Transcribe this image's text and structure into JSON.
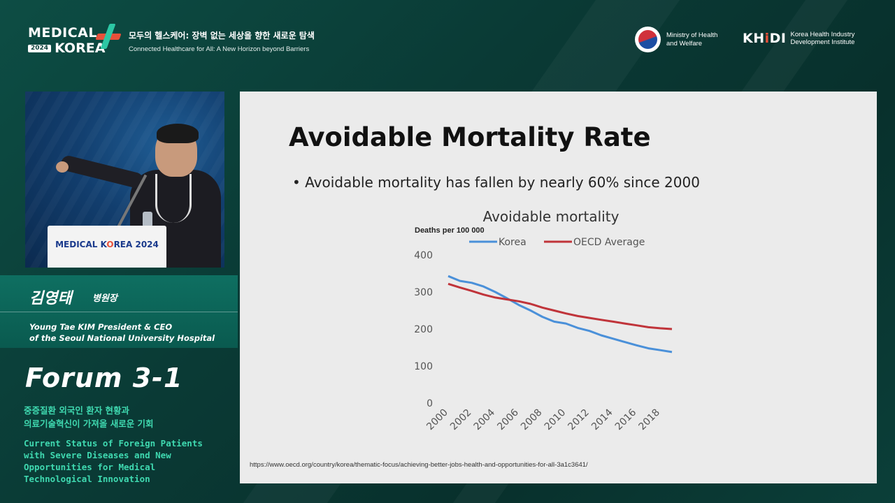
{
  "header": {
    "brand": {
      "line1": "MEDICAL",
      "year": "2024",
      "line2": "KOREA"
    },
    "tagline_ko": "모두의 헬스케어: 장벽 없는 세상을 향한 새로운 탐색",
    "tagline_en": "Connected Healthcare for All: A New Horizon beyond Barriers",
    "ministry": {
      "line1": "Ministry of Health",
      "line2": "and Welfare"
    },
    "khidi": {
      "logo_k": "K",
      "logo_h": "H",
      "logo_i": "i",
      "logo_di": "DI",
      "line1": "Korea Health Industry",
      "line2": "Development Institute"
    }
  },
  "video": {
    "podium_title_a": "MEDICAL K",
    "podium_title_b": "REA 2024"
  },
  "speaker": {
    "name_ko": "김영태",
    "title_ko": "병원장",
    "name_en_line1": "Young Tae KIM President & CEO",
    "name_en_line2": "of the Seoul National University Hospital"
  },
  "session": {
    "forum": "Forum 3-1",
    "title_ko_line1": "중증질환 외국인 환자 현황과",
    "title_ko_line2": "의료기술혁신이 가져올 새로운 기회",
    "title_en_line1": "Current Status of Foreign Patients",
    "title_en_line2": "with Severe Diseases and New",
    "title_en_line3": "Opportunities for Medical",
    "title_en_line4": "Technological Innovation"
  },
  "slide": {
    "title": "Avoidable Mortality Rate",
    "bullet": "Avoidable mortality has fallen by nearly 60% since 2000",
    "source": "https://www.oecd.org/country/korea/thematic-focus/achieving-better-jobs-health-and-opportunities-for-all-3a1c3641/"
  },
  "colors": {
    "korea": "#4a90d9",
    "oecd": "#c0343a",
    "accent": "#3fd9b0"
  },
  "chart_data": {
    "type": "line",
    "title": "Avoidable mortality",
    "ylabel": "Deaths per 100 000",
    "ylim": [
      0,
      400
    ],
    "yticks": [
      0,
      100,
      200,
      300,
      400
    ],
    "xticks": [
      2000,
      2002,
      2004,
      2006,
      2008,
      2010,
      2012,
      2014,
      2016,
      2018
    ],
    "legend_position": "top",
    "grid": false,
    "x": [
      2000,
      2001,
      2002,
      2003,
      2004,
      2005,
      2006,
      2007,
      2008,
      2009,
      2010,
      2011,
      2012,
      2013,
      2014,
      2015,
      2016,
      2017,
      2018,
      2019
    ],
    "series": [
      {
        "name": "Korea",
        "values": [
          343,
          330,
          325,
          315,
          300,
          283,
          265,
          250,
          233,
          220,
          215,
          203,
          195,
          183,
          174,
          165,
          156,
          148,
          143,
          138
        ]
      },
      {
        "name": "OECD Average",
        "values": [
          322,
          312,
          303,
          293,
          285,
          280,
          275,
          268,
          258,
          250,
          242,
          235,
          230,
          225,
          220,
          215,
          210,
          205,
          202,
          200
        ]
      }
    ]
  }
}
